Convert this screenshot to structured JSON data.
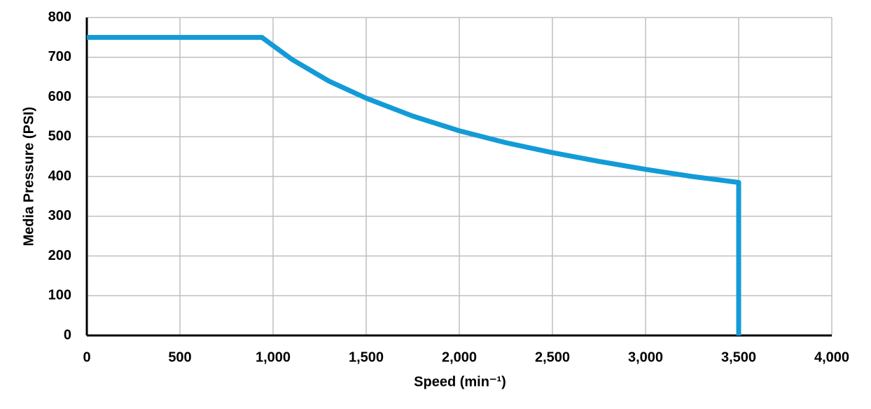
{
  "chart_data": {
    "type": "line",
    "x_label": "Speed (min⁻¹)",
    "y_label": "Media Pressure (PSI)",
    "x": [
      0,
      940,
      1100,
      1300,
      1500,
      1750,
      2000,
      2250,
      2500,
      2750,
      3000,
      3250,
      3500,
      3500
    ],
    "values": [
      750,
      750,
      695,
      640,
      597,
      552,
      515,
      485,
      460,
      438,
      418,
      400,
      385,
      0
    ],
    "color": "#139bd7",
    "xlim": [
      0,
      4000
    ],
    "xticks": [
      0,
      500,
      {
        "value": 1000,
        "label": "1,000"
      },
      {
        "value": 1500,
        "label": "1,500"
      },
      {
        "value": 2000,
        "label": "2,000"
      },
      {
        "value": 2500,
        "label": "2,500"
      },
      {
        "value": 3000,
        "label": "3,000"
      },
      {
        "value": 3500,
        "label": "3,500"
      },
      {
        "value": 4000,
        "label": "4,000"
      }
    ],
    "ylim": [
      0,
      800
    ],
    "yticks": [
      0,
      100,
      200,
      300,
      400,
      500,
      600,
      700,
      800
    ],
    "grid": true
  }
}
